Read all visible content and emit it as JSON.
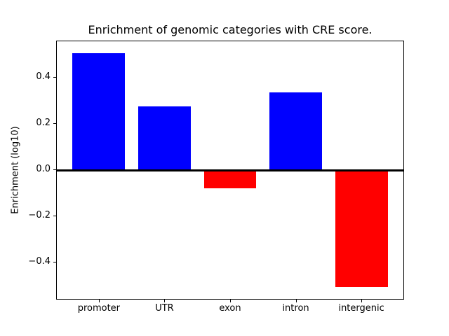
{
  "chart_data": {
    "type": "bar",
    "title": "Enrichment of genomic categories with CRE score.",
    "ylabel": "Enrichment (log10)",
    "xlabel": "",
    "categories": [
      "promoter",
      "UTR",
      "exon",
      "intron",
      "intergenic"
    ],
    "values": [
      0.505,
      0.275,
      -0.08,
      0.335,
      -0.505
    ],
    "bar_colors": [
      "#0000ff",
      "#0000ff",
      "#ff0000",
      "#0000ff",
      "#ff0000"
    ],
    "positive_color": "#0000ff",
    "negative_color": "#ff0000",
    "yticks": {
      "values": [
        0.4,
        0.2,
        0.0,
        -0.2,
        -0.4
      ],
      "labels": [
        "0.4",
        "0.2",
        "0.0",
        "−0.2",
        "−0.4"
      ]
    },
    "ylim": [
      -0.5555,
      0.5555
    ],
    "xlim": [
      -0.64,
      4.64
    ],
    "bar_width_units": 0.8,
    "zero_line": true,
    "grid": false,
    "legend": "none",
    "background_color": "#ffffff",
    "axis_color": "#000000"
  }
}
